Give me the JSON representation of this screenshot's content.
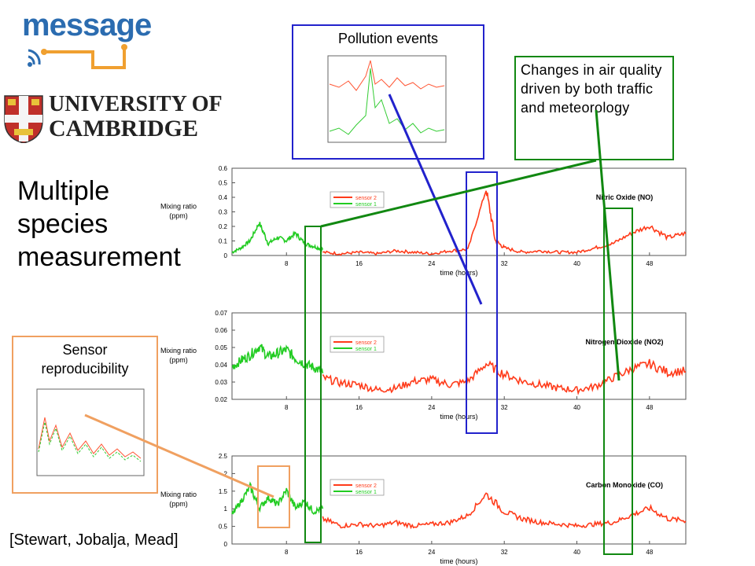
{
  "logos": {
    "message": "message",
    "university_line1": "UNIVERSITY OF",
    "university_line2": "CAMBRIDGE"
  },
  "slide": {
    "title_lines": [
      "Multiple",
      "species",
      "measurement"
    ],
    "citation": "[Stewart, Jobalja, Mead]"
  },
  "callouts": {
    "pollution": "Pollution events",
    "air_quality": "Changes in air quality driven by both traffic and meteorology",
    "sensor_repro": "Sensor reproducibility"
  },
  "colors": {
    "sensor2": "#ff3b1a",
    "sensor1": "#22cc22",
    "blue_box": "#2222cc",
    "green_box": "#118811",
    "orange_box": "#f0a060",
    "message_blue": "#2b6cb0",
    "message_orange": "#f0a030"
  },
  "chart_data": [
    {
      "type": "line",
      "title": "Nitric Oxide (NO)",
      "ylabel": "Mixing ratio (ppm)",
      "xlabel": "time (hours)",
      "x_ticks": [
        "8",
        "16",
        "24",
        "32",
        "40",
        "48"
      ],
      "x_tick_values": [
        8,
        16,
        24,
        32,
        40,
        48
      ],
      "xlim": [
        2,
        52
      ],
      "y_ticks": [
        "0",
        "0.1",
        "0.2",
        "0.3",
        "0.4",
        "0.5",
        "0.6"
      ],
      "y_tick_values": [
        0,
        0.1,
        0.2,
        0.3,
        0.4,
        0.5,
        0.6
      ],
      "ylim": [
        0,
        0.6
      ],
      "legend": [
        "sensor 2",
        "sensor 1"
      ],
      "series": [
        {
          "name": "sensor 1",
          "x": [
            2,
            3,
            4,
            5,
            6,
            7,
            8,
            9,
            10,
            11,
            12
          ],
          "y": [
            0.02,
            0.05,
            0.1,
            0.22,
            0.08,
            0.12,
            0.1,
            0.15,
            0.08,
            0.06,
            0.04
          ]
        },
        {
          "name": "sensor 2",
          "x": [
            12,
            14,
            16,
            18,
            20,
            22,
            24,
            26,
            28,
            30,
            31,
            32,
            34,
            36,
            38,
            40,
            42,
            44,
            46,
            48,
            50,
            52
          ],
          "y": [
            0.02,
            0.01,
            0.02,
            0.01,
            0.03,
            0.02,
            0.01,
            0.03,
            0.04,
            0.45,
            0.1,
            0.05,
            0.02,
            0.03,
            0.02,
            0.02,
            0.05,
            0.08,
            0.15,
            0.2,
            0.12,
            0.15
          ]
        }
      ]
    },
    {
      "type": "line",
      "title": "Nitrogen Dioxide (NO2)",
      "ylabel": "Mixing ratio (ppm)",
      "xlabel": "time (hours)",
      "x_ticks": [
        "8",
        "16",
        "24",
        "32",
        "40",
        "48"
      ],
      "x_tick_values": [
        8,
        16,
        24,
        32,
        40,
        48
      ],
      "xlim": [
        2,
        52
      ],
      "y_ticks": [
        "0.02",
        "0.03",
        "0.04",
        "0.05",
        "0.06",
        "0.07"
      ],
      "y_tick_values": [
        0.02,
        0.03,
        0.04,
        0.05,
        0.06,
        0.07
      ],
      "ylim": [
        0.02,
        0.07
      ],
      "legend": [
        "sensor 2",
        "sensor 1"
      ],
      "series": [
        {
          "name": "sensor 1",
          "x": [
            2,
            3,
            4,
            5,
            6,
            7,
            8,
            9,
            10,
            11,
            12
          ],
          "y": [
            0.038,
            0.042,
            0.045,
            0.05,
            0.044,
            0.046,
            0.048,
            0.043,
            0.04,
            0.038,
            0.035
          ]
        },
        {
          "name": "sensor 2",
          "x": [
            12,
            14,
            16,
            18,
            20,
            22,
            24,
            26,
            28,
            30,
            32,
            34,
            36,
            38,
            40,
            42,
            44,
            46,
            48,
            50,
            52
          ],
          "y": [
            0.032,
            0.029,
            0.028,
            0.025,
            0.026,
            0.03,
            0.031,
            0.028,
            0.03,
            0.04,
            0.034,
            0.03,
            0.028,
            0.026,
            0.025,
            0.027,
            0.032,
            0.037,
            0.04,
            0.035,
            0.036
          ]
        }
      ]
    },
    {
      "type": "line",
      "title": "Carbon Monoxide (CO)",
      "ylabel": "Mixing ratio (ppm)",
      "xlabel": "time (hours)",
      "x_ticks": [
        "8",
        "16",
        "24",
        "32",
        "40",
        "48"
      ],
      "x_tick_values": [
        8,
        16,
        24,
        32,
        40,
        48
      ],
      "xlim": [
        2,
        52
      ],
      "y_ticks": [
        "0",
        "0.5",
        "1",
        "1.5",
        "2",
        "2.5"
      ],
      "y_tick_values": [
        0,
        0.5,
        1,
        1.5,
        2,
        2.5
      ],
      "ylim": [
        0,
        2.5
      ],
      "legend": [
        "sensor 2",
        "sensor 1"
      ],
      "series": [
        {
          "name": "sensor 1",
          "x": [
            2,
            3,
            4,
            5,
            6,
            7,
            8,
            9,
            10,
            11,
            12
          ],
          "y": [
            0.8,
            1.2,
            1.6,
            1.0,
            1.3,
            1.1,
            1.5,
            1.0,
            1.2,
            0.9,
            1.0
          ]
        },
        {
          "name": "sensor 2",
          "x": [
            12,
            14,
            16,
            18,
            20,
            22,
            24,
            26,
            28,
            30,
            32,
            34,
            36,
            38,
            40,
            42,
            44,
            46,
            48,
            50,
            52
          ],
          "y": [
            0.7,
            0.5,
            0.55,
            0.5,
            0.6,
            0.5,
            0.55,
            0.6,
            0.8,
            1.4,
            0.9,
            0.7,
            0.6,
            0.55,
            0.5,
            0.55,
            0.6,
            0.8,
            1.0,
            0.7,
            0.65
          ]
        }
      ]
    }
  ]
}
